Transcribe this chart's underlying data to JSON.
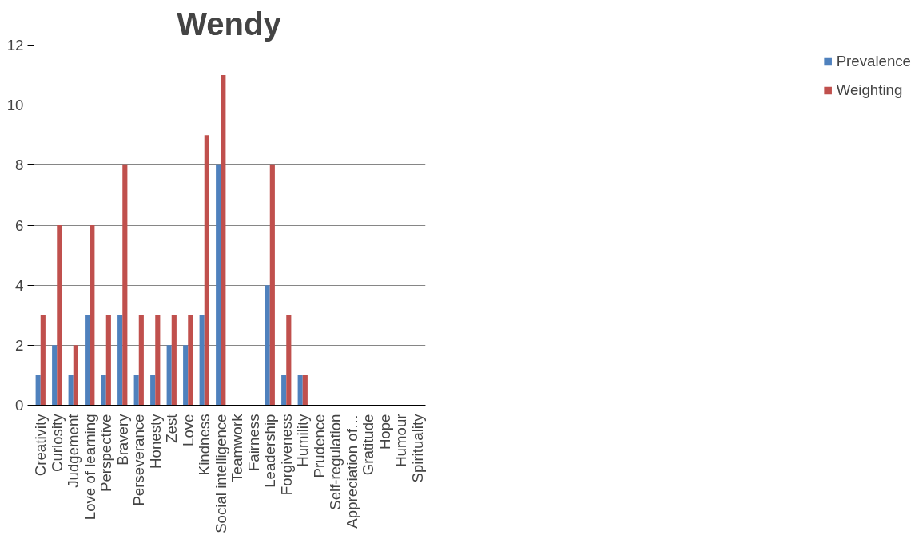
{
  "chart_data": {
    "type": "bar",
    "title": "Wendy",
    "categories": [
      "Creativity",
      "Curiosity",
      "Judgement",
      "Love of learning",
      "Perspective",
      "Bravery",
      "Perseverance",
      "Honesty",
      "Zest",
      "Love",
      "Kindness",
      "Social intelligence",
      "Teamwork",
      "Fairness",
      "Leadership",
      "Forgiveness",
      "Humility",
      "Prudence",
      "Self-regulation",
      "Appreciation of…",
      "Gratitude",
      "Hope",
      "Humour",
      "Spirituality"
    ],
    "series": [
      {
        "name": "Prevalence",
        "color": "#4f81bd",
        "values": [
          1,
          2,
          1,
          3,
          1,
          3,
          1,
          1,
          2,
          2,
          3,
          8,
          0,
          0,
          4,
          1,
          1,
          0,
          0,
          0,
          0,
          0,
          0,
          0
        ]
      },
      {
        "name": "Weighting",
        "color": "#c0504d",
        "values": [
          3,
          6,
          2,
          6,
          3,
          8,
          3,
          3,
          3,
          3,
          9,
          11,
          0,
          0,
          8,
          3,
          1,
          0,
          0,
          0,
          0,
          0,
          0,
          0
        ]
      }
    ],
    "ylim": [
      0,
      12
    ],
    "yticks": [
      0,
      2,
      4,
      6,
      8,
      10,
      12
    ],
    "grid": "y",
    "legend": "right"
  }
}
